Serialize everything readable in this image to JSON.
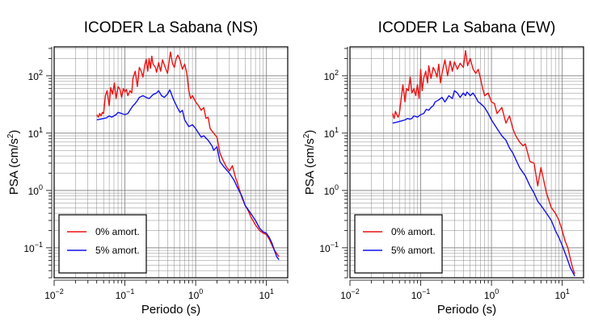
{
  "chart_data": [
    {
      "type": "line",
      "title": "ICODER La Sabana (NS)",
      "xlabel": "Periodo (s)",
      "ylabel_main": "PSA (cm/s",
      "ylabel_sup": "2",
      "ylabel_end": ")",
      "xscale": "log",
      "yscale": "log",
      "xlim": [
        0.01,
        20
      ],
      "ylim": [
        0.03,
        320
      ],
      "x_ticks": [
        {
          "base": "10",
          "exp": "−2"
        },
        {
          "base": "10",
          "exp": "−1"
        },
        {
          "base": "10",
          "exp": "0"
        },
        {
          "base": "10",
          "exp": "1"
        }
      ],
      "y_ticks": [
        {
          "base": "10",
          "exp": "−1"
        },
        {
          "base": "10",
          "exp": "0"
        },
        {
          "base": "10",
          "exp": "1"
        },
        {
          "base": "10",
          "exp": "2"
        }
      ],
      "grid": true,
      "legend_position": "bottom-left",
      "series": [
        {
          "name": "0% amort.",
          "color": "#ee1111",
          "x": [
            0.04,
            0.042,
            0.044,
            0.046,
            0.048,
            0.05,
            0.053,
            0.056,
            0.06,
            0.063,
            0.067,
            0.071,
            0.075,
            0.08,
            0.085,
            0.09,
            0.095,
            0.1,
            0.105,
            0.11,
            0.118,
            0.125,
            0.13,
            0.14,
            0.15,
            0.16,
            0.17,
            0.18,
            0.19,
            0.2,
            0.21,
            0.22,
            0.23,
            0.24,
            0.25,
            0.27,
            0.28,
            0.3,
            0.32,
            0.34,
            0.36,
            0.38,
            0.4,
            0.42,
            0.44,
            0.47,
            0.5,
            0.53,
            0.56,
            0.6,
            0.65,
            0.7,
            0.75,
            0.8,
            0.85,
            0.9,
            1.0,
            1.1,
            1.2,
            1.3,
            1.4,
            1.5,
            1.6,
            1.8,
            2.0,
            2.2,
            2.4,
            2.7,
            3.0,
            3.3,
            3.6,
            4.0,
            4.5,
            5.0,
            5.5,
            6.0,
            7.0,
            8.0,
            9.0,
            10.0,
            11.0,
            12.0,
            13.0,
            14.0,
            15.0
          ],
          "values": [
            21,
            19,
            22,
            20,
            23,
            22,
            45,
            55,
            30,
            62,
            48,
            75,
            40,
            65,
            58,
            42,
            60,
            52,
            58,
            45,
            55,
            50,
            90,
            120,
            65,
            140,
            120,
            95,
            150,
            195,
            120,
            200,
            135,
            220,
            160,
            140,
            115,
            170,
            120,
            190,
            155,
            130,
            110,
            170,
            260,
            165,
            140,
            200,
            230,
            190,
            130,
            160,
            110,
            55,
            40,
            45,
            35,
            30,
            25,
            28,
            18,
            19,
            12,
            10,
            8.5,
            4.5,
            3.5,
            2.6,
            2.2,
            2.7,
            1.8,
            1.2,
            0.75,
            0.55,
            0.45,
            0.35,
            0.25,
            0.2,
            0.18,
            0.17,
            0.14,
            0.11,
            0.09,
            0.08,
            0.07
          ]
        },
        {
          "name": "5% amort.",
          "color": "#1111ee",
          "x": [
            0.04,
            0.045,
            0.05,
            0.055,
            0.06,
            0.065,
            0.07,
            0.075,
            0.08,
            0.09,
            0.1,
            0.11,
            0.12,
            0.13,
            0.14,
            0.15,
            0.16,
            0.18,
            0.2,
            0.22,
            0.25,
            0.28,
            0.3,
            0.33,
            0.36,
            0.4,
            0.43,
            0.45,
            0.48,
            0.5,
            0.55,
            0.6,
            0.65,
            0.7,
            0.8,
            0.9,
            1.0,
            1.1,
            1.2,
            1.3,
            1.5,
            1.7,
            1.8,
            2.0,
            2.2,
            2.5,
            3.0,
            3.5,
            4.0,
            4.5,
            5.0,
            6.0,
            7.0,
            8.0,
            9.0,
            10.0,
            11.0,
            12.0,
            13.0,
            14.0,
            15.0
          ],
          "values": [
            17,
            17.5,
            18,
            18.5,
            20,
            19,
            20,
            21,
            23,
            22,
            21,
            22,
            26,
            30,
            33,
            37,
            42,
            45,
            42,
            40,
            47,
            50,
            55,
            45,
            42,
            48,
            57,
            50,
            40,
            36,
            28,
            23,
            25,
            17,
            13,
            14,
            12,
            10,
            8.5,
            9,
            7.5,
            6,
            5,
            5.8,
            3.2,
            2.6,
            2.0,
            1.5,
            1.05,
            0.8,
            0.55,
            0.4,
            0.3,
            0.22,
            0.19,
            0.18,
            0.15,
            0.12,
            0.09,
            0.07,
            0.062
          ]
        }
      ]
    },
    {
      "type": "line",
      "title": "ICODER La Sabana (EW)",
      "xlabel": "Periodo (s)",
      "ylabel_main": "PSA (cm/s",
      "ylabel_sup": "2",
      "ylabel_end": ")",
      "xscale": "log",
      "yscale": "log",
      "xlim": [
        0.01,
        20
      ],
      "ylim": [
        0.03,
        320
      ],
      "x_ticks": [
        {
          "base": "10",
          "exp": "−2"
        },
        {
          "base": "10",
          "exp": "−1"
        },
        {
          "base": "10",
          "exp": "0"
        },
        {
          "base": "10",
          "exp": "1"
        }
      ],
      "y_ticks": [
        {
          "base": "10",
          "exp": "−1"
        },
        {
          "base": "10",
          "exp": "0"
        },
        {
          "base": "10",
          "exp": "1"
        },
        {
          "base": "10",
          "exp": "2"
        }
      ],
      "grid": true,
      "legend_position": "bottom-left",
      "series": [
        {
          "name": "0% amort.",
          "color": "#ee1111",
          "x": [
            0.04,
            0.042,
            0.044,
            0.046,
            0.048,
            0.05,
            0.053,
            0.056,
            0.06,
            0.063,
            0.067,
            0.071,
            0.075,
            0.08,
            0.085,
            0.09,
            0.095,
            0.1,
            0.105,
            0.11,
            0.118,
            0.125,
            0.13,
            0.14,
            0.15,
            0.16,
            0.17,
            0.18,
            0.19,
            0.2,
            0.22,
            0.24,
            0.26,
            0.28,
            0.3,
            0.33,
            0.36,
            0.4,
            0.43,
            0.46,
            0.5,
            0.55,
            0.6,
            0.65,
            0.7,
            0.75,
            0.8,
            0.9,
            1.0,
            1.1,
            1.2,
            1.4,
            1.6,
            1.8,
            2.0,
            2.2,
            2.5,
            2.8,
            3.0,
            3.5,
            4.0,
            4.5,
            5.0,
            6.0,
            7.0,
            8.0,
            9.0,
            10.0,
            11.0,
            12.0,
            13.0,
            14.0,
            15.0
          ],
          "values": [
            22,
            18,
            24,
            21,
            19,
            22,
            40,
            70,
            35,
            60,
            55,
            95,
            50,
            60,
            45,
            70,
            40,
            130,
            55,
            90,
            120,
            75,
            150,
            90,
            140,
            120,
            95,
            160,
            75,
            110,
            190,
            100,
            180,
            120,
            175,
            130,
            165,
            140,
            275,
            150,
            200,
            130,
            110,
            130,
            90,
            60,
            45,
            50,
            35,
            33,
            22,
            28,
            15,
            20,
            12,
            9,
            7,
            6,
            6.5,
            3.2,
            3.0,
            1.2,
            2.5,
            0.9,
            0.5,
            0.4,
            0.3,
            0.2,
            0.13,
            0.1,
            0.065,
            0.045,
            0.035
          ]
        },
        {
          "name": "5% amort.",
          "color": "#1111ee",
          "x": [
            0.04,
            0.045,
            0.05,
            0.055,
            0.06,
            0.065,
            0.07,
            0.075,
            0.08,
            0.09,
            0.1,
            0.11,
            0.12,
            0.13,
            0.14,
            0.15,
            0.16,
            0.18,
            0.2,
            0.22,
            0.25,
            0.28,
            0.3,
            0.33,
            0.36,
            0.4,
            0.43,
            0.45,
            0.48,
            0.5,
            0.55,
            0.6,
            0.65,
            0.7,
            0.8,
            0.9,
            1.0,
            1.2,
            1.4,
            1.6,
            1.8,
            2.0,
            2.5,
            3.0,
            3.5,
            4.0,
            4.5,
            5.0,
            6.0,
            7.0,
            8.0,
            9.0,
            10.0,
            11.0,
            12.0,
            13.0,
            14.0,
            15.0
          ],
          "values": [
            15,
            15.5,
            16,
            16.5,
            17,
            18,
            17.5,
            18,
            20,
            19,
            21,
            22,
            26,
            25,
            28,
            30,
            35,
            38,
            42,
            35,
            45,
            40,
            55,
            50,
            42,
            50,
            45,
            52,
            48,
            45,
            50,
            42,
            35,
            33,
            28,
            22,
            17,
            12,
            9,
            7.5,
            5.5,
            4.5,
            2.5,
            1.8,
            1.2,
            0.9,
            0.65,
            0.55,
            0.4,
            0.3,
            0.2,
            0.15,
            0.11,
            0.08,
            0.06,
            0.045,
            0.038,
            0.032
          ]
        }
      ]
    }
  ]
}
